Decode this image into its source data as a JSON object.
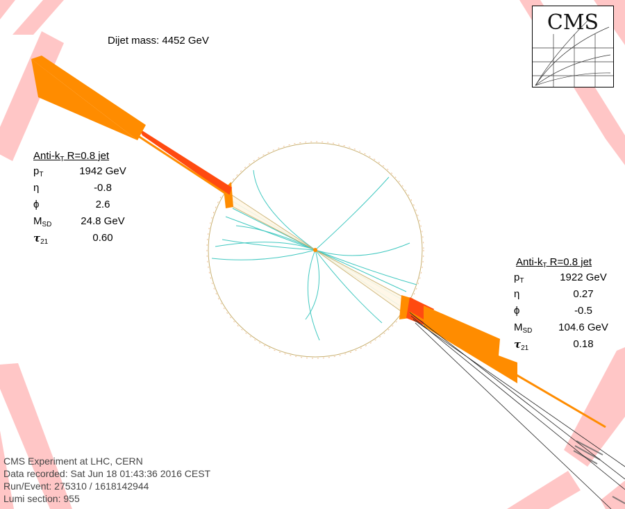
{
  "dijet_mass": "Dijet mass: 4452 GeV",
  "logo_text": "CMS",
  "jet1": {
    "title": "Anti-k",
    "title_sub": "T",
    "title_rest": " R=0.8 jet",
    "rows": [
      {
        "label": "p",
        "sub": "T",
        "value": "1942 GeV"
      },
      {
        "label": "η",
        "sub": "",
        "value": "-0.8"
      },
      {
        "label": "ϕ",
        "sub": "",
        "value": "2.6"
      },
      {
        "label": "M",
        "sub": "SD",
        "value": "24.8 GeV"
      },
      {
        "label": "τ",
        "sub": "21",
        "value": "0.60"
      }
    ]
  },
  "jet2": {
    "title": "Anti-k",
    "title_sub": "T",
    "title_rest": " R=0.8 jet",
    "rows": [
      {
        "label": "p",
        "sub": "T",
        "value": "1922 GeV"
      },
      {
        "label": "η",
        "sub": "",
        "value": "0.27"
      },
      {
        "label": "ϕ",
        "sub": "",
        "value": "-0.5"
      },
      {
        "label": "M",
        "sub": "SD",
        "value": "104.6 GeV"
      },
      {
        "label": "τ",
        "sub": "21",
        "value": "0.18"
      }
    ]
  },
  "footer": {
    "line1": "CMS Experiment at LHC, CERN",
    "line2": "Data recorded: Sat Jun 18 01:43:36 2016 CEST",
    "line3": "Run/Event: 275310 / 1618142944",
    "line4": "Lumi section: 955"
  },
  "colors": {
    "energy": "#ff8c00",
    "energy_core": "#ff4a10",
    "muon_chamber": "#ffb3b3",
    "muon_chamber_hit": "#c9a0a0",
    "track": "#40c8c0",
    "muon_track": "#222222",
    "tracker_outline": "#c8b070"
  }
}
